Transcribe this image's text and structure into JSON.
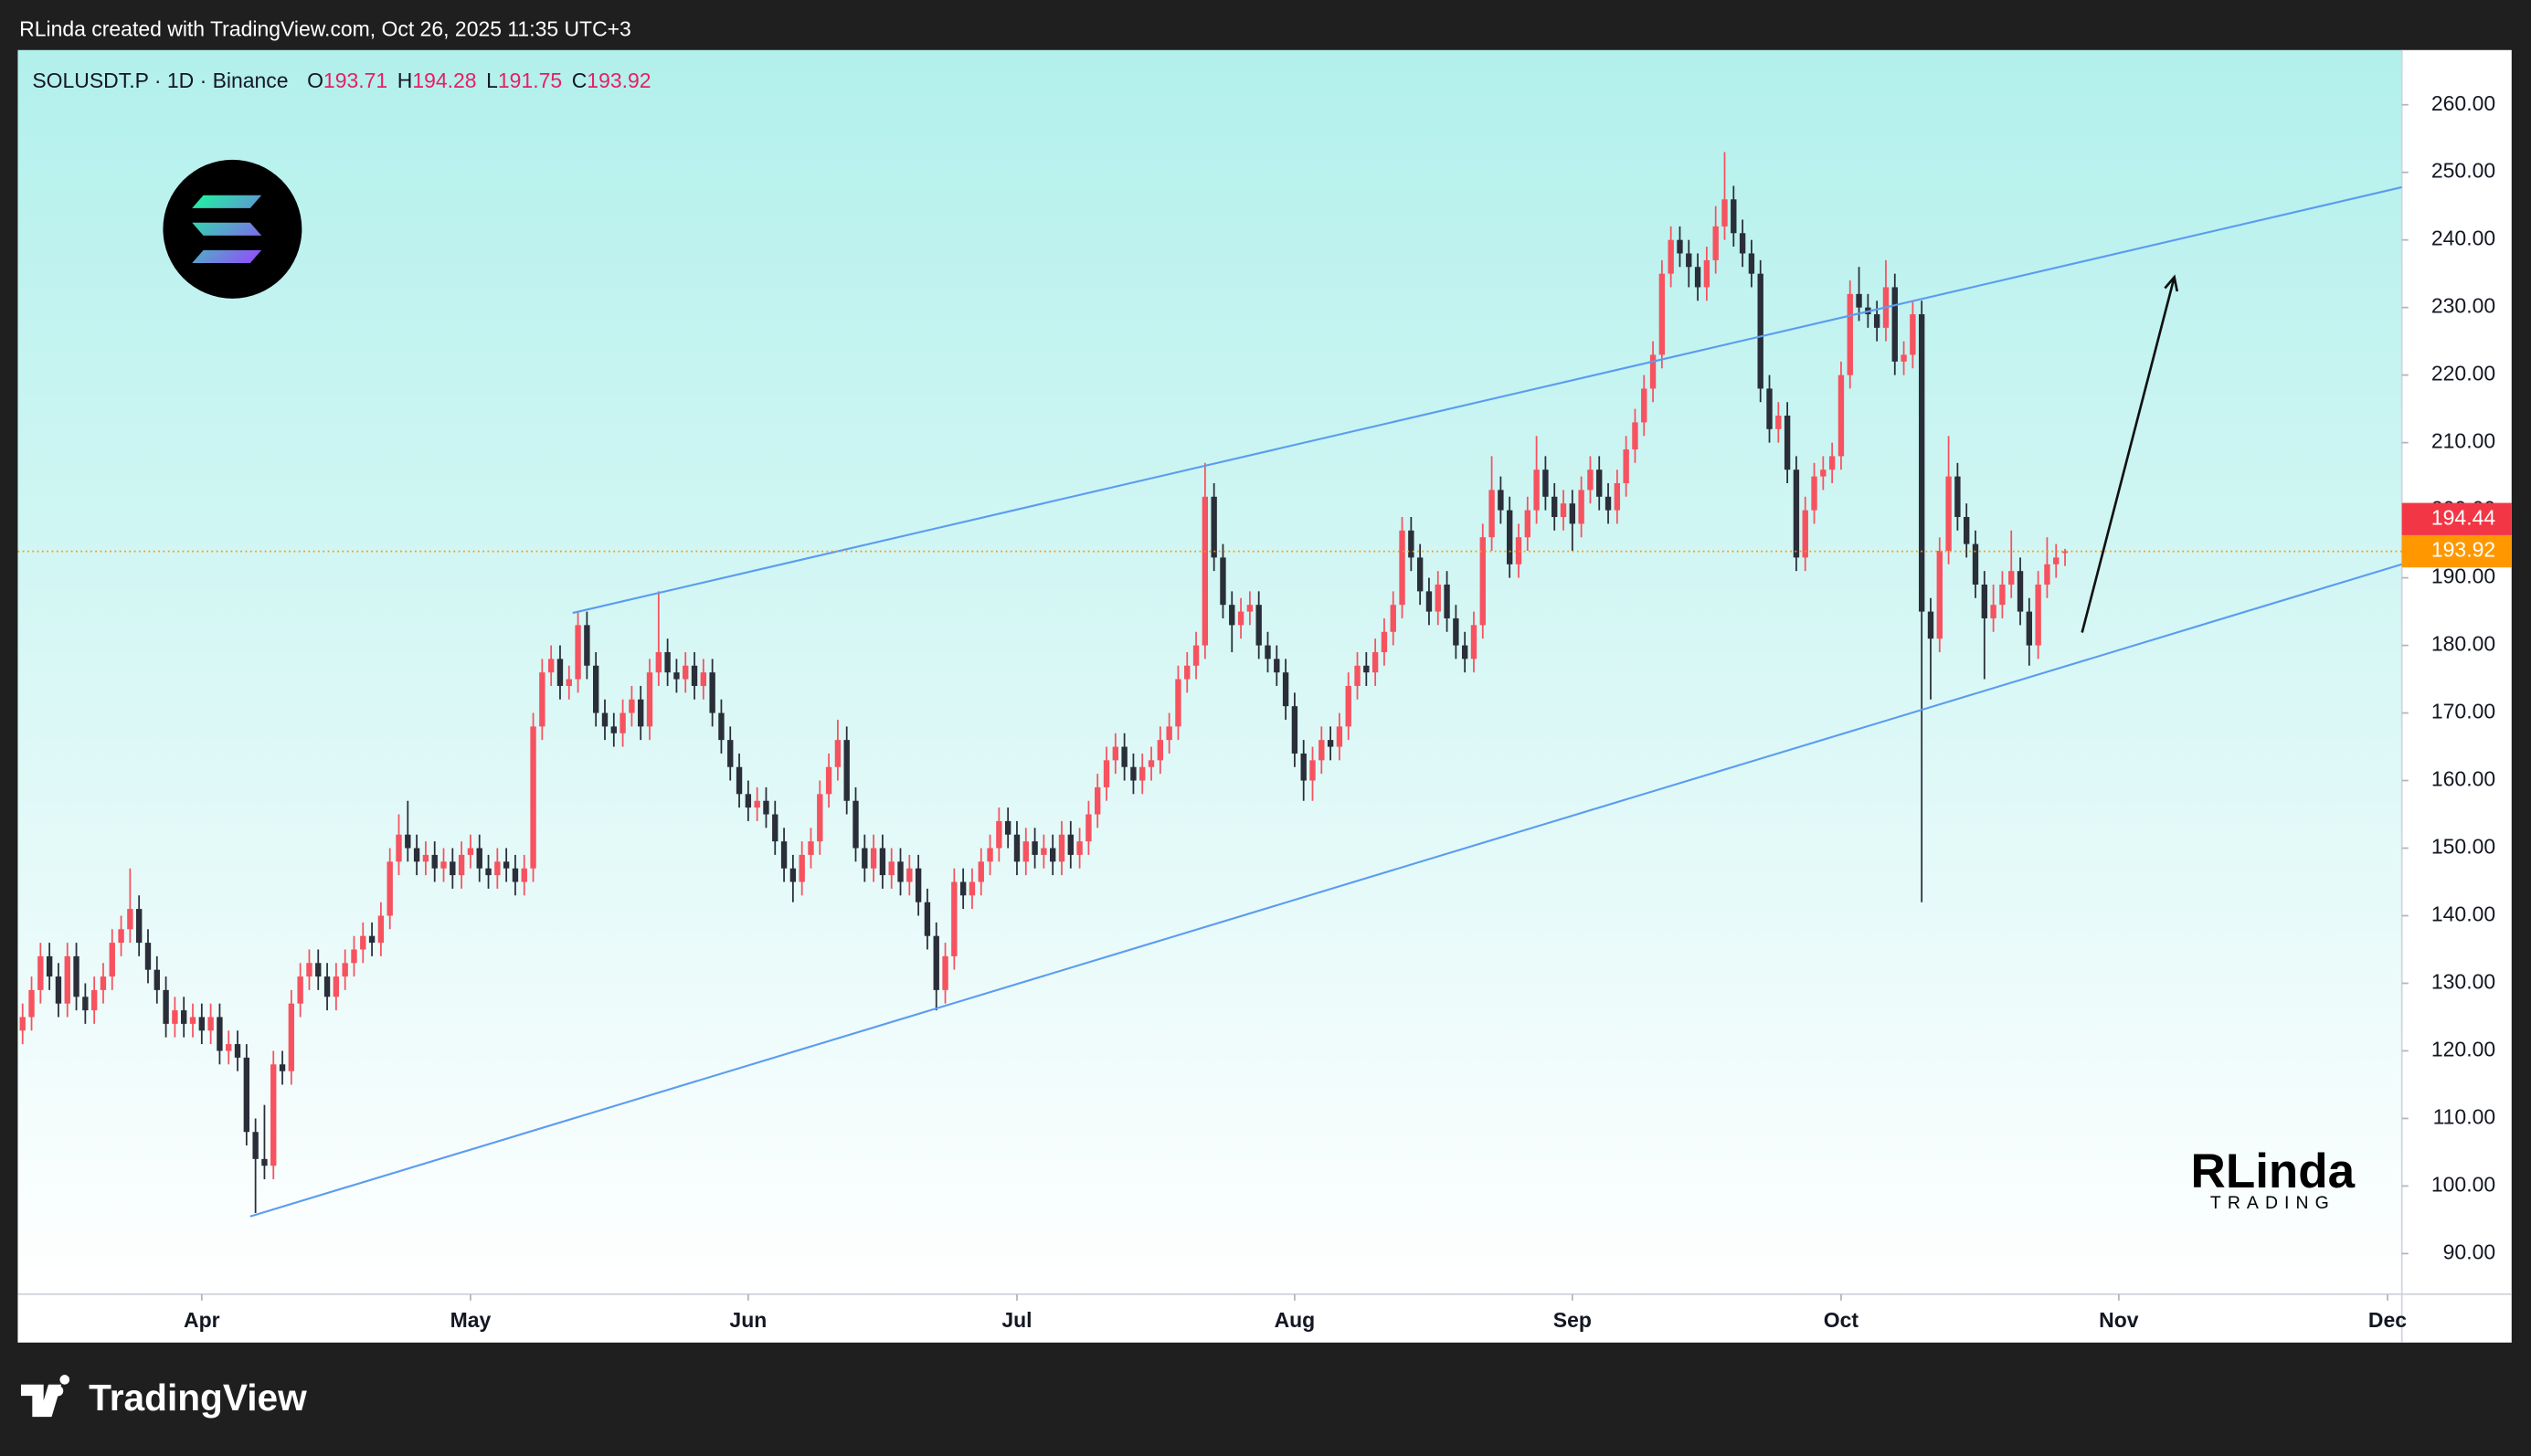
{
  "chart_data": {
    "type": "candlestick",
    "attribution": "RLinda created with TradingView.com, Oct 26, 2025 11:35 UTC+3",
    "symbol": "SOLUSDT.P · 1D · Binance",
    "legend_ohlc": [
      {
        "letter": "O",
        "value": 193.71
      },
      {
        "letter": "H",
        "value": 194.28
      },
      {
        "letter": "L",
        "value": 191.75
      },
      {
        "letter": "C",
        "value": 193.92
      }
    ],
    "watermark": {
      "name": "RLinda",
      "sub": "TRADING"
    },
    "brand": "TradingView",
    "up_color": "#f7525f",
    "down_color": "#2a2e39",
    "xlim": [
      -0.54,
      265.6
    ],
    "ylim": [
      84,
      268.1
    ],
    "xticks": [
      {
        "value": 20,
        "label": "Apr"
      },
      {
        "value": 50,
        "label": "May"
      },
      {
        "value": 81,
        "label": "Jun"
      },
      {
        "value": 111,
        "label": "Jul"
      },
      {
        "value": 142,
        "label": "Aug"
      },
      {
        "value": 173,
        "label": "Sep"
      },
      {
        "value": 203,
        "label": "Oct"
      },
      {
        "value": 234,
        "label": "Nov"
      },
      {
        "value": 264,
        "label": "Dec"
      }
    ],
    "yticks": [
      {
        "value": 90,
        "label": "90.00"
      },
      {
        "value": 100,
        "label": "100.00"
      },
      {
        "value": 110,
        "label": "110.00"
      },
      {
        "value": 120,
        "label": "120.00"
      },
      {
        "value": 130,
        "label": "130.00"
      },
      {
        "value": 140,
        "label": "140.00"
      },
      {
        "value": 150,
        "label": "150.00"
      },
      {
        "value": 160,
        "label": "160.00"
      },
      {
        "value": 170,
        "label": "170.00"
      },
      {
        "value": 180,
        "label": "180.00"
      },
      {
        "value": 190,
        "label": "190.00"
      },
      {
        "value": 200,
        "label": "200.00"
      },
      {
        "value": 210,
        "label": "210.00"
      },
      {
        "value": 220,
        "label": "220.00"
      },
      {
        "value": 230,
        "label": "230.00"
      },
      {
        "value": 240,
        "label": "240.00"
      },
      {
        "value": 250,
        "label": "250.00"
      },
      {
        "value": 260,
        "label": "260.00"
      }
    ],
    "price_labels": [
      {
        "value": 194.44,
        "color": "#f23645"
      },
      {
        "value": 193.92,
        "color": "#ff9800"
      }
    ],
    "drawings": [
      {
        "kind": "line",
        "color": "#5b9cf0",
        "x": [
          61.4,
          265.6
        ],
        "y": [
          184.8,
          247.8
        ]
      },
      {
        "kind": "line",
        "color": "#5b9cf0",
        "x": [
          25.4,
          265.6
        ],
        "y": [
          95.5,
          192
        ]
      },
      {
        "kind": "arrow",
        "color": "#111111",
        "x": [
          229.9,
          240.2
        ],
        "y": [
          181.9,
          234.5
        ]
      }
    ],
    "ohlc": [
      [
        123,
        127,
        121,
        125
      ],
      [
        125,
        131,
        123,
        129
      ],
      [
        129,
        136,
        127,
        134
      ],
      [
        134,
        136,
        129,
        131
      ],
      [
        131,
        133,
        125,
        127
      ],
      [
        127,
        136,
        125,
        134
      ],
      [
        134,
        136,
        126,
        128
      ],
      [
        128,
        130,
        124,
        126
      ],
      [
        126,
        131,
        124,
        129
      ],
      [
        129,
        133,
        127,
        131
      ],
      [
        131,
        138,
        129,
        136
      ],
      [
        136,
        140,
        134,
        138
      ],
      [
        138,
        147,
        136,
        141
      ],
      [
        141,
        143,
        134,
        136
      ],
      [
        136,
        138,
        130,
        132
      ],
      [
        132,
        134,
        127,
        129
      ],
      [
        129,
        131,
        122,
        124
      ],
      [
        124,
        128,
        122,
        126
      ],
      [
        126,
        128,
        122,
        124
      ],
      [
        124,
        127,
        122,
        125
      ],
      [
        125,
        127,
        121,
        123
      ],
      [
        123,
        127,
        121,
        125
      ],
      [
        125,
        127,
        118,
        120
      ],
      [
        120,
        123,
        118,
        121
      ],
      [
        121,
        123,
        117,
        119
      ],
      [
        119,
        121,
        106,
        108
      ],
      [
        108,
        110,
        96,
        104
      ],
      [
        104,
        112,
        101,
        103
      ],
      [
        103,
        120,
        101,
        118
      ],
      [
        118,
        120,
        115,
        117
      ],
      [
        117,
        129,
        115,
        127
      ],
      [
        127,
        133,
        125,
        131
      ],
      [
        131,
        135,
        129,
        133
      ],
      [
        133,
        135,
        129,
        131
      ],
      [
        131,
        133,
        126,
        128
      ],
      [
        128,
        133,
        126,
        131
      ],
      [
        131,
        135,
        129,
        133
      ],
      [
        133,
        137,
        131,
        135
      ],
      [
        135,
        139,
        133,
        137
      ],
      [
        137,
        139,
        134,
        136
      ],
      [
        136,
        142,
        134,
        140
      ],
      [
        140,
        150,
        138,
        148
      ],
      [
        148,
        155,
        146,
        152
      ],
      [
        152,
        157,
        148,
        150
      ],
      [
        150,
        152,
        146,
        148
      ],
      [
        148,
        151,
        146,
        149
      ],
      [
        149,
        151,
        145,
        147
      ],
      [
        147,
        150,
        145,
        148
      ],
      [
        148,
        150,
        144,
        146
      ],
      [
        146,
        151,
        144,
        149
      ],
      [
        149,
        152,
        147,
        150
      ],
      [
        150,
        152,
        145,
        147
      ],
      [
        147,
        149,
        144,
        146
      ],
      [
        146,
        150,
        144,
        148
      ],
      [
        148,
        150,
        145,
        147
      ],
      [
        147,
        149,
        143,
        145
      ],
      [
        145,
        149,
        143,
        147
      ],
      [
        147,
        170,
        145,
        168
      ],
      [
        168,
        178,
        166,
        176
      ],
      [
        176,
        180,
        174,
        178
      ],
      [
        178,
        180,
        172,
        174
      ],
      [
        174,
        177,
        172,
        175
      ],
      [
        175,
        185,
        173,
        183
      ],
      [
        183,
        185,
        175,
        177
      ],
      [
        177,
        179,
        168,
        170
      ],
      [
        170,
        172,
        166,
        168
      ],
      [
        168,
        170,
        165,
        167
      ],
      [
        167,
        172,
        165,
        170
      ],
      [
        170,
        174,
        168,
        172
      ],
      [
        172,
        174,
        166,
        168
      ],
      [
        168,
        178,
        166,
        176
      ],
      [
        176,
        188,
        174,
        179
      ],
      [
        179,
        181,
        174,
        176
      ],
      [
        176,
        178,
        173,
        175
      ],
      [
        175,
        179,
        173,
        177
      ],
      [
        177,
        179,
        172,
        174
      ],
      [
        174,
        178,
        172,
        176
      ],
      [
        176,
        178,
        168,
        170
      ],
      [
        170,
        172,
        164,
        166
      ],
      [
        166,
        168,
        160,
        162
      ],
      [
        162,
        164,
        156,
        158
      ],
      [
        158,
        160,
        154,
        156
      ],
      [
        156,
        159,
        154,
        157
      ],
      [
        157,
        159,
        153,
        155
      ],
      [
        155,
        157,
        149,
        151
      ],
      [
        151,
        153,
        145,
        147
      ],
      [
        147,
        149,
        142,
        145
      ],
      [
        145,
        151,
        143,
        149
      ],
      [
        149,
        153,
        147,
        151
      ],
      [
        151,
        160,
        149,
        158
      ],
      [
        158,
        164,
        156,
        162
      ],
      [
        162,
        169,
        160,
        166
      ],
      [
        166,
        168,
        155,
        157
      ],
      [
        157,
        159,
        148,
        150
      ],
      [
        150,
        152,
        145,
        147
      ],
      [
        147,
        152,
        145,
        150
      ],
      [
        150,
        152,
        144,
        146
      ],
      [
        146,
        150,
        144,
        148
      ],
      [
        148,
        150,
        143,
        145
      ],
      [
        145,
        149,
        143,
        147
      ],
      [
        147,
        149,
        140,
        142
      ],
      [
        142,
        144,
        135,
        137
      ],
      [
        137,
        139,
        126,
        129
      ],
      [
        129,
        136,
        127,
        134
      ],
      [
        134,
        147,
        132,
        145
      ],
      [
        145,
        147,
        141,
        143
      ],
      [
        143,
        147,
        141,
        145
      ],
      [
        145,
        150,
        143,
        148
      ],
      [
        148,
        152,
        146,
        150
      ],
      [
        150,
        156,
        148,
        154
      ],
      [
        154,
        156,
        150,
        152
      ],
      [
        152,
        154,
        146,
        148
      ],
      [
        148,
        153,
        146,
        151
      ],
      [
        151,
        153,
        147,
        149
      ],
      [
        149,
        152,
        147,
        150
      ],
      [
        150,
        152,
        146,
        148
      ],
      [
        148,
        154,
        146,
        152
      ],
      [
        152,
        154,
        147,
        149
      ],
      [
        149,
        153,
        147,
        151
      ],
      [
        151,
        157,
        149,
        155
      ],
      [
        155,
        161,
        153,
        159
      ],
      [
        159,
        165,
        157,
        163
      ],
      [
        163,
        167,
        161,
        165
      ],
      [
        165,
        167,
        160,
        162
      ],
      [
        162,
        164,
        158,
        160
      ],
      [
        160,
        164,
        158,
        162
      ],
      [
        162,
        165,
        160,
        163
      ],
      [
        163,
        168,
        161,
        166
      ],
      [
        166,
        170,
        164,
        168
      ],
      [
        168,
        177,
        166,
        175
      ],
      [
        175,
        179,
        173,
        177
      ],
      [
        177,
        182,
        175,
        180
      ],
      [
        180,
        207,
        178,
        202
      ],
      [
        202,
        204,
        191,
        193
      ],
      [
        193,
        195,
        184,
        186
      ],
      [
        186,
        188,
        179,
        183
      ],
      [
        183,
        187,
        181,
        185
      ],
      [
        185,
        188,
        183,
        186
      ],
      [
        186,
        188,
        178,
        180
      ],
      [
        180,
        182,
        176,
        178
      ],
      [
        178,
        180,
        174,
        176
      ],
      [
        176,
        178,
        169,
        171
      ],
      [
        171,
        173,
        162,
        164
      ],
      [
        164,
        166,
        157,
        160
      ],
      [
        160,
        165,
        157,
        163
      ],
      [
        163,
        168,
        161,
        166
      ],
      [
        166,
        168,
        163,
        165
      ],
      [
        165,
        170,
        163,
        168
      ],
      [
        168,
        176,
        166,
        174
      ],
      [
        174,
        179,
        172,
        177
      ],
      [
        177,
        179,
        174,
        176
      ],
      [
        176,
        181,
        174,
        179
      ],
      [
        179,
        184,
        177,
        182
      ],
      [
        182,
        188,
        180,
        186
      ],
      [
        186,
        199,
        184,
        197
      ],
      [
        197,
        199,
        191,
        193
      ],
      [
        193,
        195,
        186,
        188
      ],
      [
        188,
        190,
        183,
        185
      ],
      [
        185,
        191,
        183,
        189
      ],
      [
        189,
        191,
        182,
        184
      ],
      [
        184,
        186,
        178,
        180
      ],
      [
        180,
        182,
        176,
        178
      ],
      [
        178,
        185,
        176,
        183
      ],
      [
        183,
        198,
        181,
        196
      ],
      [
        196,
        208,
        194,
        203
      ],
      [
        203,
        205,
        198,
        200
      ],
      [
        200,
        202,
        190,
        192
      ],
      [
        192,
        198,
        190,
        196
      ],
      [
        196,
        202,
        194,
        200
      ],
      [
        200,
        211,
        198,
        206
      ],
      [
        206,
        208,
        200,
        202
      ],
      [
        202,
        204,
        197,
        199
      ],
      [
        199,
        203,
        197,
        201
      ],
      [
        201,
        203,
        194,
        198
      ],
      [
        198,
        205,
        196,
        203
      ],
      [
        203,
        208,
        201,
        206
      ],
      [
        206,
        208,
        200,
        202
      ],
      [
        202,
        204,
        198,
        200
      ],
      [
        200,
        206,
        198,
        204
      ],
      [
        204,
        211,
        202,
        209
      ],
      [
        209,
        215,
        207,
        213
      ],
      [
        213,
        220,
        211,
        218
      ],
      [
        218,
        225,
        216,
        223
      ],
      [
        223,
        237,
        221,
        235
      ],
      [
        235,
        242,
        233,
        240
      ],
      [
        240,
        242,
        236,
        238
      ],
      [
        238,
        240,
        233,
        236
      ],
      [
        236,
        238,
        231,
        233
      ],
      [
        233,
        239,
        231,
        237
      ],
      [
        237,
        245,
        235,
        242
      ],
      [
        242,
        253,
        240,
        246
      ],
      [
        246,
        248,
        239,
        241
      ],
      [
        241,
        243,
        236,
        238
      ],
      [
        238,
        240,
        233,
        235
      ],
      [
        235,
        237,
        216,
        218
      ],
      [
        218,
        220,
        210,
        212
      ],
      [
        212,
        216,
        210,
        214
      ],
      [
        214,
        216,
        204,
        206
      ],
      [
        206,
        208,
        191,
        193
      ],
      [
        193,
        202,
        191,
        200
      ],
      [
        200,
        207,
        198,
        205
      ],
      [
        205,
        208,
        203,
        206
      ],
      [
        206,
        210,
        204,
        208
      ],
      [
        208,
        222,
        206,
        220
      ],
      [
        220,
        234,
        218,
        232
      ],
      [
        232,
        236,
        228,
        230
      ],
      [
        230,
        232,
        227,
        229
      ],
      [
        229,
        231,
        225,
        227
      ],
      [
        227,
        237,
        225,
        233
      ],
      [
        233,
        235,
        220,
        222
      ],
      [
        222,
        225,
        220,
        223
      ],
      [
        223,
        231,
        221,
        229
      ],
      [
        229,
        231,
        142,
        185
      ],
      [
        185,
        187,
        172,
        181
      ],
      [
        181,
        196,
        179,
        194
      ],
      [
        194,
        211,
        192,
        205
      ],
      [
        205,
        207,
        197,
        199
      ],
      [
        199,
        201,
        193,
        195
      ],
      [
        195,
        197,
        187,
        189
      ],
      [
        189,
        191,
        175,
        184
      ],
      [
        184,
        189,
        182,
        186
      ],
      [
        186,
        191,
        184,
        189
      ],
      [
        189,
        197,
        187,
        191
      ],
      [
        191,
        193,
        183,
        185
      ],
      [
        185,
        187,
        177,
        180
      ],
      [
        180,
        191,
        178,
        189
      ],
      [
        189,
        196,
        187,
        192
      ],
      [
        192,
        195,
        190,
        193
      ],
      [
        193.71,
        194.28,
        191.75,
        193.92
      ]
    ]
  }
}
